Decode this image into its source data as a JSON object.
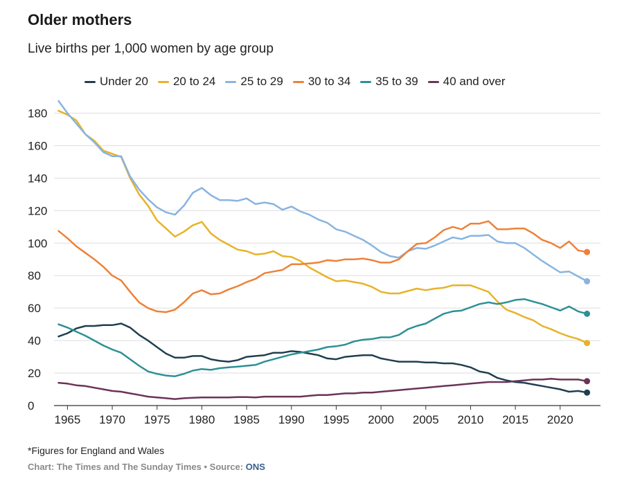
{
  "chart_data": {
    "type": "line",
    "title": "Older mothers",
    "subtitle": "Live births per 1,000 women by age group",
    "xlabel": "",
    "ylabel": "",
    "xlim": [
      1963.5,
      2024.5
    ],
    "ylim": [
      0,
      190
    ],
    "yticks": [
      0,
      20,
      40,
      60,
      80,
      100,
      120,
      140,
      160,
      180
    ],
    "xticks": [
      1965,
      1970,
      1975,
      1980,
      1985,
      1990,
      1995,
      2000,
      2005,
      2010,
      2015,
      2020
    ],
    "x": [
      1964,
      1965,
      1966,
      1967,
      1968,
      1969,
      1970,
      1971,
      1972,
      1973,
      1974,
      1975,
      1976,
      1977,
      1978,
      1979,
      1980,
      1981,
      1982,
      1983,
      1984,
      1985,
      1986,
      1987,
      1988,
      1989,
      1990,
      1991,
      1992,
      1993,
      1994,
      1995,
      1996,
      1997,
      1998,
      1999,
      2000,
      2001,
      2002,
      2003,
      2004,
      2005,
      2006,
      2007,
      2008,
      2009,
      2010,
      2011,
      2012,
      2013,
      2014,
      2015,
      2016,
      2017,
      2018,
      2019,
      2020,
      2021,
      2022,
      2023
    ],
    "series": [
      {
        "name": "Under 20",
        "color": "#1f3f4f",
        "values": [
          42.5,
          44.5,
          47.5,
          49,
          49,
          49.5,
          49.5,
          50.5,
          48,
          43.5,
          40,
          36,
          32,
          29.5,
          29.5,
          30.5,
          30.5,
          28.5,
          27.5,
          27,
          28,
          30,
          30.5,
          31,
          32.5,
          32.5,
          33.5,
          33,
          32,
          31,
          29,
          28.5,
          30,
          30.5,
          31,
          31,
          29,
          28,
          27,
          27,
          27,
          26.5,
          26.5,
          26,
          26,
          25,
          23.5,
          21,
          20,
          17,
          15.5,
          14.5,
          14,
          13,
          12,
          11,
          10,
          8.5,
          9,
          8
        ]
      },
      {
        "name": "20 to 24",
        "color": "#e8b229",
        "values": [
          181.5,
          179,
          175.5,
          167,
          163,
          157,
          155,
          153,
          140,
          130,
          123,
          114,
          109,
          104,
          107,
          111,
          113,
          106,
          102,
          99,
          96,
          95,
          93,
          93.5,
          95,
          92,
          91.5,
          89,
          85,
          82,
          79,
          76.5,
          77,
          76,
          75,
          73,
          70,
          69,
          69,
          70.5,
          72,
          71,
          72,
          72.5,
          74,
          74,
          74,
          72,
          70,
          64,
          59,
          57,
          54.5,
          52.5,
          49,
          47,
          44.5,
          42.5,
          41,
          38.5
        ]
      },
      {
        "name": "25 to 29",
        "color": "#88b4e0",
        "values": [
          187.5,
          180,
          173.5,
          167,
          162,
          156,
          153.5,
          153.5,
          141,
          133,
          127,
          122,
          119,
          117.5,
          123,
          131,
          134,
          129.5,
          126.5,
          126.5,
          126,
          127.5,
          124,
          125,
          124,
          120.5,
          122.5,
          119.5,
          117.5,
          114.5,
          112.5,
          108.5,
          107,
          104.5,
          102,
          98.5,
          94.5,
          92,
          91,
          95,
          97,
          96.5,
          98.5,
          101,
          103.5,
          102.5,
          104.5,
          104.5,
          105,
          101,
          100,
          100,
          97,
          93,
          89,
          85.5,
          82,
          82.5,
          79.5,
          76.5
        ]
      },
      {
        "name": "30 to 34",
        "color": "#ee8137",
        "values": [
          107.5,
          103,
          98,
          94,
          90,
          85.5,
          80,
          77,
          70,
          63.5,
          60,
          58,
          57.5,
          59,
          63.5,
          69,
          71,
          68.5,
          69,
          71.5,
          73.5,
          76,
          78,
          81.5,
          82.5,
          83.5,
          87,
          87,
          87.5,
          88,
          89.5,
          89,
          90,
          90,
          90.5,
          89.5,
          88,
          88,
          90,
          95,
          99.5,
          100,
          103.5,
          108,
          110,
          108.5,
          112,
          112,
          113.5,
          108.5,
          108.5,
          109,
          109,
          106,
          102,
          100,
          97,
          101,
          95.5,
          94.5
        ]
      },
      {
        "name": "35 to 39",
        "color": "#2c9095",
        "values": [
          50,
          48,
          45.5,
          43,
          40,
          37,
          34.5,
          32.5,
          28.5,
          24.5,
          21,
          19.5,
          18.5,
          18,
          19.5,
          21.5,
          22.5,
          22,
          23,
          23.5,
          24,
          24.5,
          25,
          27,
          28.5,
          30,
          31.5,
          32.5,
          33.5,
          34.5,
          36,
          36.5,
          37.5,
          39.5,
          40.5,
          41,
          42,
          42,
          43.5,
          47,
          49,
          50.5,
          53.5,
          56.5,
          58,
          58.5,
          60.5,
          62.5,
          63.5,
          62.5,
          63.5,
          65,
          65.5,
          64,
          62.5,
          60.5,
          58.5,
          61,
          58,
          56.5
        ]
      },
      {
        "name": "40 and over",
        "color": "#6a3358",
        "values": [
          14,
          13.5,
          12.5,
          12,
          11,
          10,
          9,
          8.5,
          7.5,
          6.5,
          5.5,
          5,
          4.5,
          4,
          4.5,
          4.8,
          5,
          5,
          5,
          5,
          5.2,
          5.2,
          5,
          5.5,
          5.5,
          5.5,
          5.5,
          5.5,
          6,
          6.5,
          6.5,
          7,
          7.5,
          7.5,
          8,
          8,
          8.5,
          9,
          9.5,
          10,
          10.5,
          11,
          11.5,
          12,
          12.5,
          13,
          13.5,
          14,
          14.5,
          14.5,
          14.5,
          15,
          15.5,
          16,
          16,
          16.5,
          16,
          16,
          16,
          15
        ]
      }
    ]
  },
  "footnote": "*Figures for England and Wales",
  "credits": {
    "prefix": "Chart: The Times and The Sunday Times • Source: ",
    "source": "ONS"
  }
}
